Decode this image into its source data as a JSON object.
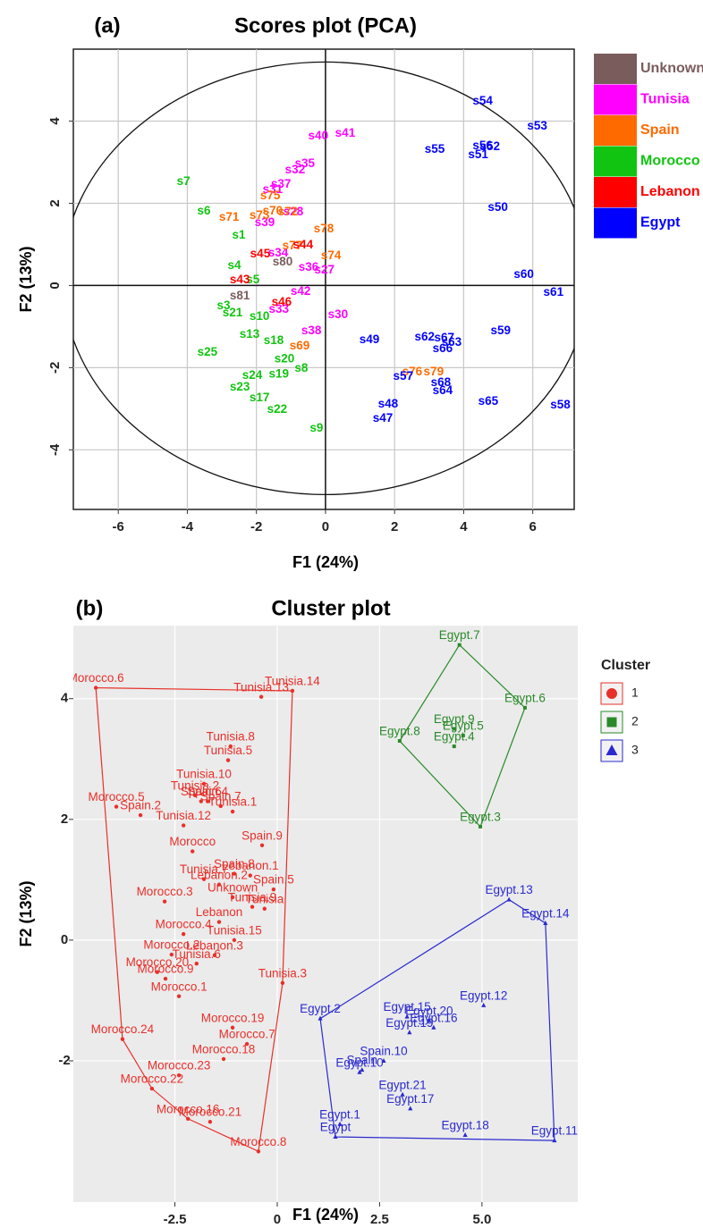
{
  "chart_data": [
    {
      "type": "scatter",
      "panel_label": "(a)",
      "title": "Scores plot (PCA)",
      "x_label": "F1 (24%)",
      "y_label": "F2 (13%)",
      "xlim": [
        -7.3,
        7.2
      ],
      "ylim": [
        -5.45,
        5.75
      ],
      "xticks": [
        -6,
        -4,
        -2,
        0,
        2,
        4,
        6
      ],
      "yticks": [
        -4,
        -2,
        0,
        2,
        4
      ],
      "grid": true,
      "series": [
        {
          "name": "Unknown",
          "color": "#7a5c5c",
          "labels": [
            "s80",
            "s81"
          ],
          "x": [
            -1.24,
            -2.48
          ],
          "values": [
            0.57,
            -0.26
          ]
        },
        {
          "name": "Tunisia",
          "color": "#ff00ff",
          "labels": [
            "s40",
            "s41",
            "s35",
            "s32",
            "s37",
            "s31",
            "s39",
            "s28",
            "s34",
            "s36",
            "s27",
            "s42",
            "s33",
            "s30",
            "s38"
          ],
          "x": [
            -0.21,
            0.57,
            -0.6,
            -0.88,
            -1.29,
            -1.53,
            -1.76,
            -0.93,
            -1.37,
            -0.49,
            -0.03,
            -0.72,
            -1.35,
            0.36,
            -0.41
          ],
          "values": [
            3.63,
            3.7,
            2.96,
            2.8,
            2.46,
            2.33,
            1.52,
            1.78,
            0.78,
            0.43,
            0.37,
            -0.15,
            -0.59,
            -0.72,
            -1.11
          ]
        },
        {
          "name": "Spain",
          "color": "#ff6a00",
          "labels": [
            "s76",
            "s79",
            "s78",
            "s74",
            "s69",
            "s71",
            "s73",
            "s70",
            "s72",
            "s75",
            "s77"
          ],
          "x": [
            2.51,
            3.13,
            -0.05,
            0.16,
            -0.75,
            -2.79,
            -1.91,
            -1.53,
            -1.09,
            -1.6,
            -0.96
          ],
          "values": [
            -2.11,
            -2.11,
            1.37,
            0.72,
            -1.48,
            1.65,
            1.7,
            1.8,
            1.78,
            2.17,
            0.96
          ]
        },
        {
          "name": "Morocco",
          "color": "#11c411",
          "labels": [
            "s7",
            "s6",
            "s1",
            "s4",
            "s5",
            "s3",
            "s21",
            "s10",
            "s13",
            "s18",
            "s20",
            "s8",
            "s25",
            "s24",
            "s19",
            "s23",
            "s17",
            "s22",
            "s9"
          ],
          "x": [
            -4.11,
            -3.52,
            -2.51,
            -2.64,
            -2.1,
            -2.95,
            -2.69,
            -1.91,
            -2.2,
            -1.5,
            -1.19,
            -0.7,
            -3.42,
            -2.12,
            -1.35,
            -2.48,
            -1.91,
            -1.4,
            -0.26
          ],
          "values": [
            2.52,
            1.8,
            1.22,
            0.48,
            0.13,
            -0.5,
            -0.67,
            -0.76,
            -1.2,
            -1.35,
            -1.8,
            -2.02,
            -1.63,
            -2.2,
            -2.17,
            -2.48,
            -2.74,
            -3.02,
            -3.48
          ]
        },
        {
          "name": "Lebanon",
          "color": "#ff0000",
          "labels": [
            "s45",
            "s44",
            "s43",
            "s46"
          ],
          "x": [
            -1.89,
            -0.65,
            -2.48,
            -1.27
          ],
          "values": [
            0.76,
            0.98,
            0.13,
            -0.41
          ]
        },
        {
          "name": "Egypt",
          "color": "#0000ff",
          "labels": [
            "s54",
            "s53",
            "s55",
            "s56",
            "s52",
            "s51",
            "s50",
            "s60",
            "s61",
            "s59",
            "s62",
            "s67",
            "s63",
            "s66",
            "s49",
            "s57",
            "s68",
            "s64",
            "s48",
            "s47",
            "s65",
            "s58"
          ],
          "x": [
            4.55,
            6.13,
            3.16,
            4.55,
            4.76,
            4.42,
            4.99,
            5.74,
            6.6,
            5.07,
            2.87,
            3.44,
            3.65,
            3.39,
            1.27,
            2.25,
            3.34,
            3.39,
            1.81,
            1.66,
            4.71,
            6.8
          ],
          "values": [
            4.48,
            3.87,
            3.3,
            3.39,
            3.37,
            3.17,
            1.89,
            0.26,
            -0.17,
            -1.11,
            -1.26,
            -1.28,
            -1.39,
            -1.54,
            -1.33,
            -2.22,
            -2.37,
            -2.57,
            -2.89,
            -3.24,
            -2.83,
            -2.91
          ]
        }
      ]
    },
    {
      "type": "scatter",
      "panel_label": "(b)",
      "title": "Cluster plot",
      "x_label": "F1 (24%)",
      "y_label": "F2 (13%)",
      "legend_title": "Cluster",
      "xlim": [
        -4.98,
        7.34
      ],
      "ylim": [
        -4.34,
        5.21
      ],
      "xticks": [
        -2.5,
        0,
        2.5,
        {
          "value": 5,
          "label": "5.0"
        }
      ],
      "yticks": [
        -2,
        0,
        2,
        4
      ],
      "grid": true,
      "hull": true,
      "series": [
        {
          "name": "1",
          "color": "#e8302a",
          "marker": "circle",
          "labels": [
            "Morocco.6",
            "Tunisia.13",
            "Tunisia.14",
            "Tunisia.8",
            "Tunisia.5",
            "Tunisia.10",
            "Tunisia.2",
            "Spain.6",
            "Spain.4",
            "Morocco.5",
            "Spain.7",
            "Tunisia.1",
            "Spain.2",
            "Tunisia.12",
            "Spain.9",
            "Morocco",
            "Spain.8",
            "Lebanon.1",
            "Tunisia.7",
            "Lebanon.2",
            "Spain.5",
            "Unknown",
            "Morocco.3",
            "Tunisia.9",
            "Tunisia",
            "Lebanon",
            "Morocco.4",
            "Tunisia.15",
            "Morocco.2",
            "Lebanon.3",
            "Tunisia.6",
            "Morocco.20",
            "Tunisia.3",
            "Morocco.9",
            "Morocco.1",
            "Morocco.24",
            "Morocco.19",
            "Morocco.7",
            "Morocco.18",
            "Morocco.23",
            "Morocco.22",
            "Morocco.16",
            "Morocco.21",
            "Morocco.8"
          ],
          "x": [
            -4.43,
            -0.39,
            0.37,
            -1.14,
            -1.2,
            -1.79,
            -2.01,
            -1.86,
            -1.7,
            -3.93,
            -1.38,
            -1.09,
            -3.34,
            -2.29,
            -0.37,
            -2.07,
            -1.05,
            -0.66,
            -1.79,
            -1.42,
            -0.09,
            -1.09,
            -2.75,
            -0.61,
            -0.31,
            -1.42,
            -2.29,
            -1.05,
            -2.58,
            -1.53,
            -1.97,
            -2.93,
            0.13,
            -2.73,
            -2.4,
            -3.78,
            -1.09,
            -0.74,
            -1.31,
            -2.4,
            -3.06,
            -2.18,
            -1.64,
            -0.46
          ],
          "values": [
            4.18,
            4.03,
            4.13,
            3.21,
            2.98,
            2.59,
            2.4,
            2.3,
            2.3,
            2.21,
            2.22,
            2.13,
            2.07,
            1.9,
            1.57,
            1.47,
            1.1,
            1.07,
            1.01,
            0.92,
            0.84,
            0.71,
            0.64,
            0.55,
            0.52,
            0.3,
            0.1,
            0,
            -0.24,
            -0.25,
            -0.39,
            -0.53,
            -0.71,
            -0.64,
            -0.93,
            -1.64,
            -1.45,
            -1.72,
            -1.97,
            -2.24,
            -2.46,
            -2.96,
            -3.01,
            -3.5
          ]
        },
        {
          "name": "2",
          "color": "#2a8a2a",
          "marker": "square",
          "labels": [
            "Egypt.7",
            "Egypt.6",
            "Egypt.8",
            "Egypt.9",
            "Egypt.5",
            "Egypt.4",
            "Egypt.3"
          ],
          "x": [
            4.45,
            6.05,
            2.99,
            4.32,
            4.54,
            4.32,
            4.96
          ],
          "values": [
            4.89,
            3.85,
            3.3,
            3.5,
            3.39,
            3.21,
            1.88
          ]
        },
        {
          "name": "3",
          "color": "#2a2ad0",
          "marker": "triangle",
          "labels": [
            "Egypt.13",
            "Egypt.14",
            "Egypt.12",
            "Egypt.2",
            "Egypt.15",
            "Egypt.20",
            "Egypt.16",
            "Egypt.19",
            "Spain.10",
            "Spain",
            "Egypt.10",
            "Egypt.21",
            "Egypt.17",
            "Egypt.18",
            "Egypt.11",
            "Egypt.1",
            "Egypt"
          ],
          "x": [
            5.66,
            6.55,
            5.04,
            1.05,
            3.17,
            3.71,
            3.82,
            3.23,
            2.6,
            2.07,
            2.01,
            3.06,
            3.25,
            4.59,
            6.77,
            1.53,
            1.42
          ],
          "values": [
            0.67,
            0.28,
            -1.08,
            -1.3,
            -1.27,
            -1.33,
            -1.45,
            -1.53,
            -2.0,
            -2.15,
            -2.19,
            -2.56,
            -2.79,
            -3.23,
            -3.32,
            -3.05,
            -3.26
          ]
        }
      ]
    }
  ]
}
